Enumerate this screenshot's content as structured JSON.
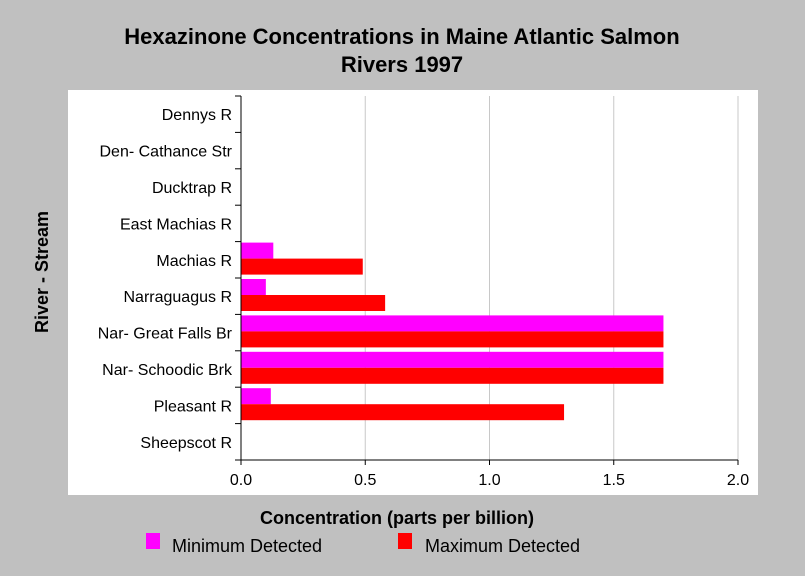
{
  "chart_data": {
    "type": "bar",
    "orientation": "horizontal",
    "title": "Hexazinone Concentrations in Maine Atlantic Salmon Rivers 1997",
    "title_lines": [
      "Hexazinone Concentrations in Maine Atlantic Salmon",
      "Rivers 1997"
    ],
    "xlabel": "Concentration (parts per billion)",
    "ylabel": "River - Stream",
    "xlim": [
      0,
      2.0
    ],
    "xticks": [
      "0.0",
      "0.5",
      "1.0",
      "1.5",
      "2.0"
    ],
    "xtick_values": [
      0,
      0.5,
      1.0,
      1.5,
      2.0
    ],
    "grid": "vertical",
    "legend_position": "bottom",
    "categories": [
      "Dennys R",
      "Den- Cathance Str",
      "Ducktrap R",
      "East Machias R",
      "Machias R",
      "Narraguagus R",
      "Nar- Great Falls Br",
      "Nar- Schoodic Brk",
      "Pleasant R",
      "Sheepscot R"
    ],
    "series": [
      {
        "name": "Minimum Detected",
        "color": "#ff00ff",
        "values": [
          0,
          0,
          0,
          0,
          0.13,
          0.1,
          1.7,
          1.7,
          0.12,
          0
        ]
      },
      {
        "name": "Maximum Detected",
        "color": "#ff0000",
        "values": [
          0,
          0,
          0,
          0,
          0.49,
          0.58,
          1.7,
          1.7,
          1.3,
          0
        ]
      }
    ]
  }
}
